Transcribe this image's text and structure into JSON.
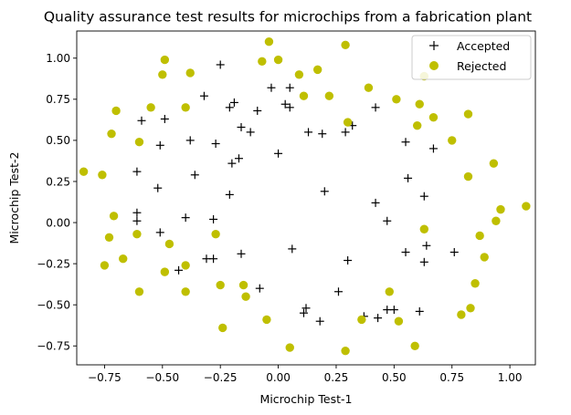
{
  "chart_data": {
    "type": "scatter",
    "title": "Quality assurance test results for microchips from a fabrication plant",
    "xlabel": "Microchip Test-1",
    "ylabel": "Microchip Test-2",
    "xlim": [
      -0.87,
      1.11
    ],
    "ylim": [
      -0.865,
      1.165
    ],
    "xticks": [
      -0.75,
      -0.5,
      -0.25,
      0.0,
      0.25,
      0.5,
      0.75,
      1.0
    ],
    "xtick_labels": [
      "−0.75",
      "−0.50",
      "−0.25",
      "0.00",
      "0.25",
      "0.50",
      "0.75",
      "1.00"
    ],
    "yticks": [
      -0.75,
      -0.5,
      -0.25,
      0.0,
      0.25,
      0.5,
      0.75,
      1.0
    ],
    "ytick_labels": [
      "−0.75",
      "−0.50",
      "−0.25",
      "0.00",
      "0.25",
      "0.50",
      "0.75",
      "1.00"
    ],
    "grid": false,
    "legend_position": "top-right",
    "series": [
      {
        "name": "Accepted",
        "marker": "plus",
        "color": "#000000",
        "points": [
          [
            0.05,
            0.7
          ],
          [
            -0.09,
            0.68
          ],
          [
            -0.21,
            0.7
          ],
          [
            -0.38,
            0.5
          ],
          [
            -0.51,
            0.47
          ],
          [
            -0.52,
            0.21
          ],
          [
            -0.4,
            0.03
          ],
          [
            -0.31,
            -0.22
          ],
          [
            0.18,
            -0.6
          ],
          [
            0.5,
            -0.53
          ],
          [
            0.47,
            -0.53
          ],
          [
            0.55,
            -0.18
          ],
          [
            -0.16,
            -0.19
          ],
          [
            0.63,
            -0.24
          ],
          [
            -0.16,
            0.58
          ],
          [
            -0.36,
            0.29
          ],
          [
            -0.49,
            0.63
          ],
          [
            -0.28,
            -0.22
          ],
          [
            -0.28,
            0.02
          ],
          [
            0.42,
            0.7
          ],
          [
            -0.43,
            -0.29
          ],
          [
            -0.32,
            0.77
          ],
          [
            0.63,
            0.16
          ],
          [
            0.3,
            -0.23
          ],
          [
            -0.61,
            0.01
          ],
          [
            0.26,
            -0.42
          ],
          [
            0.67,
            0.45
          ],
          [
            -0.19,
            0.73
          ],
          [
            -0.17,
            0.39
          ],
          [
            0.0,
            0.42
          ],
          [
            -0.61,
            0.06
          ],
          [
            0.76,
            -0.18
          ],
          [
            0.37,
            -0.57
          ],
          [
            0.64,
            -0.14
          ],
          [
            0.61,
            -0.54
          ],
          [
            0.12,
            -0.52
          ],
          [
            0.2,
            0.19
          ],
          [
            0.06,
            -0.16
          ],
          [
            0.19,
            0.54
          ],
          [
            0.29,
            0.55
          ],
          [
            -0.27,
            0.48
          ],
          [
            0.47,
            0.01
          ],
          [
            0.32,
            0.59
          ],
          [
            0.56,
            0.27
          ],
          [
            0.11,
            -0.55
          ],
          [
            -0.08,
            -0.4
          ],
          [
            0.05,
            0.82
          ],
          [
            0.43,
            -0.58
          ],
          [
            0.55,
            0.49
          ],
          [
            -0.03,
            0.82
          ],
          [
            -0.2,
            0.36
          ],
          [
            -0.25,
            0.96
          ],
          [
            -0.59,
            0.62
          ],
          [
            -0.61,
            0.31
          ],
          [
            -0.21,
            0.17
          ],
          [
            -0.12,
            0.55
          ],
          [
            -0.51,
            -0.06
          ],
          [
            0.03,
            0.72
          ],
          [
            0.42,
            0.12
          ],
          [
            0.13,
            0.55
          ]
        ]
      },
      {
        "name": "Rejected",
        "marker": "circle",
        "color": "#bfbf00",
        "points": [
          [
            -0.84,
            0.31
          ],
          [
            -0.76,
            0.29
          ],
          [
            -0.72,
            0.54
          ],
          [
            -0.7,
            0.68
          ],
          [
            -0.73,
            -0.09
          ],
          [
            -0.71,
            0.04
          ],
          [
            -0.75,
            -0.26
          ],
          [
            -0.67,
            -0.22
          ],
          [
            -0.6,
            -0.42
          ],
          [
            -0.61,
            -0.07
          ],
          [
            -0.6,
            0.49
          ],
          [
            -0.55,
            0.7
          ],
          [
            -0.5,
            0.9
          ],
          [
            -0.49,
            0.99
          ],
          [
            -0.38,
            0.91
          ],
          [
            -0.4,
            0.7
          ],
          [
            -0.49,
            -0.3
          ],
          [
            -0.47,
            -0.13
          ],
          [
            -0.4,
            -0.26
          ],
          [
            -0.4,
            -0.42
          ],
          [
            -0.27,
            -0.07
          ],
          [
            -0.15,
            -0.38
          ],
          [
            -0.14,
            -0.45
          ],
          [
            -0.24,
            -0.64
          ],
          [
            -0.05,
            -0.59
          ],
          [
            0.05,
            -0.76
          ],
          [
            0.29,
            -0.78
          ],
          [
            0.36,
            -0.59
          ],
          [
            0.48,
            -0.42
          ],
          [
            0.52,
            -0.6
          ],
          [
            0.59,
            -0.75
          ],
          [
            0.63,
            -0.04
          ],
          [
            0.79,
            -0.56
          ],
          [
            0.83,
            -0.52
          ],
          [
            0.85,
            -0.37
          ],
          [
            0.89,
            -0.21
          ],
          [
            0.87,
            -0.08
          ],
          [
            0.94,
            0.01
          ],
          [
            0.96,
            0.08
          ],
          [
            1.07,
            0.1
          ],
          [
            0.93,
            0.36
          ],
          [
            0.82,
            0.28
          ],
          [
            0.75,
            0.5
          ],
          [
            0.82,
            0.66
          ],
          [
            0.67,
            0.64
          ],
          [
            0.6,
            0.59
          ],
          [
            0.61,
            0.72
          ],
          [
            0.63,
            0.89
          ],
          [
            0.51,
            0.75
          ],
          [
            0.39,
            0.82
          ],
          [
            0.3,
            0.61
          ],
          [
            0.22,
            0.77
          ],
          [
            0.17,
            0.93
          ],
          [
            0.29,
            1.08
          ],
          [
            0.11,
            0.77
          ],
          [
            0.09,
            0.9
          ],
          [
            -0.0,
            0.99
          ],
          [
            -0.07,
            0.98
          ],
          [
            -0.04,
            1.1
          ],
          [
            -0.25,
            -0.38
          ]
        ]
      }
    ]
  }
}
